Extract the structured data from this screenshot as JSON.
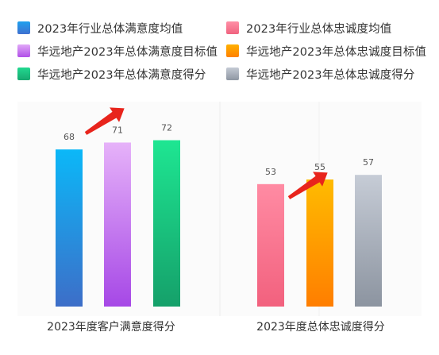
{
  "legend": [
    {
      "label": "2023年行业总体满意度均值",
      "color_top": "#1ea0ee",
      "color_bottom": "#4070d0"
    },
    {
      "label": "2023年行业总体忠诚度均值",
      "color_top": "#ff8fa6",
      "color_bottom": "#f0637f"
    },
    {
      "label": "华远地产2023年总体满意度目标值",
      "color_top": "#e0a8f8",
      "color_bottom": "#b050e8"
    },
    {
      "label": "华远地产2023年总体忠诚度目标值",
      "color_top": "#ffb000",
      "color_bottom": "#ff8000"
    },
    {
      "label": "华远地产2023年总体满意度得分",
      "color_top": "#22d890",
      "color_bottom": "#17a870"
    },
    {
      "label": "华远地产2023年总体忠诚度得分",
      "color_top": "#c4cad4",
      "color_bottom": "#8e96a2"
    }
  ],
  "chart_data": [
    {
      "type": "bar",
      "categories": [
        "2023年行业总体满意度均值",
        "华远地产2023年总体满意度目标值",
        "华远地产2023年总体满意度得分"
      ],
      "values": [
        68,
        71,
        72
      ],
      "xlabel": "2023年度客户满意度得分",
      "colors": [
        [
          "#0bb8f8",
          "#3d6ec8"
        ],
        [
          "#e6b2f9",
          "#a648e6"
        ],
        [
          "#1ee692",
          "#15a06a"
        ]
      ]
    },
    {
      "type": "bar",
      "categories": [
        "2023年行业总体忠诚度均值",
        "华远地产2023年总体忠诚度目标值",
        "华远地产2023年总体忠诚度得分"
      ],
      "values": [
        53,
        55,
        57
      ],
      "xlabel": "2023年度总体忠诚度得分",
      "colors": [
        [
          "#ff8ba3",
          "#f2617e"
        ],
        [
          "#ffbb00",
          "#ff7e00"
        ],
        [
          "#c6ccd6",
          "#8c94a0"
        ]
      ]
    }
  ],
  "arrow_color": "#e8241c"
}
